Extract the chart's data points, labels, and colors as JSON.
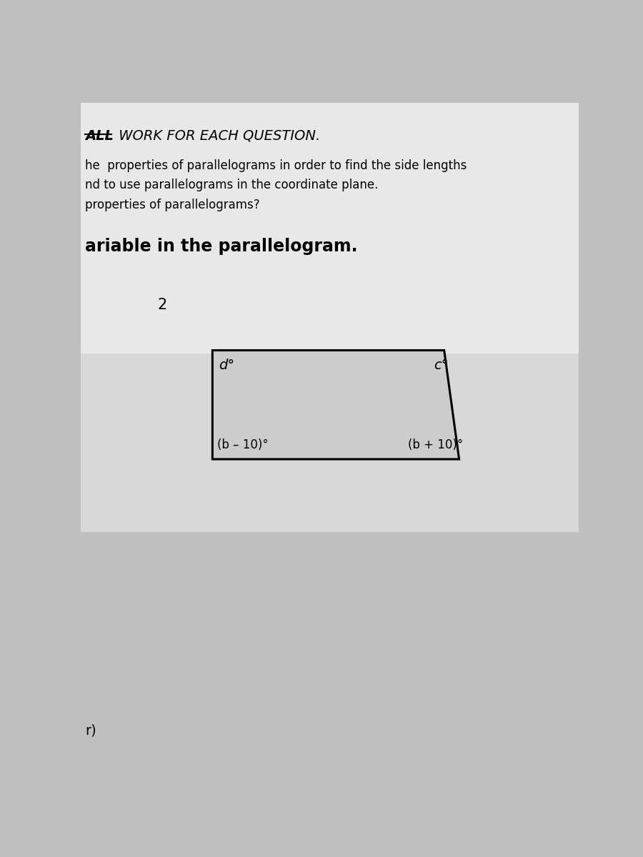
{
  "bg_color": "#c0c0c0",
  "paper_top_color": "#e8e8e8",
  "paper_mid_color": "#d8d8d8",
  "title_bold": "ALL",
  "title_rest": " WORK FOR EACH QUESTION.",
  "line1": "he  properties of parallelograms in order to find the side lengths",
  "line2": "nd to use parallelograms in the coordinate plane.",
  "line3": "properties of parallelograms?",
  "section_label": "ariable in the parallelogram.",
  "problem_number": "2",
  "corner_tl": "d°",
  "corner_tr": "c°",
  "corner_bl": "(b – 10)°",
  "corner_br": "(b + 10)°",
  "footer_label": "r)",
  "para_tl": [
    0.265,
    0.625
  ],
  "para_tr": [
    0.73,
    0.625
  ],
  "para_br": [
    0.76,
    0.46
  ],
  "para_bl": [
    0.265,
    0.46
  ]
}
